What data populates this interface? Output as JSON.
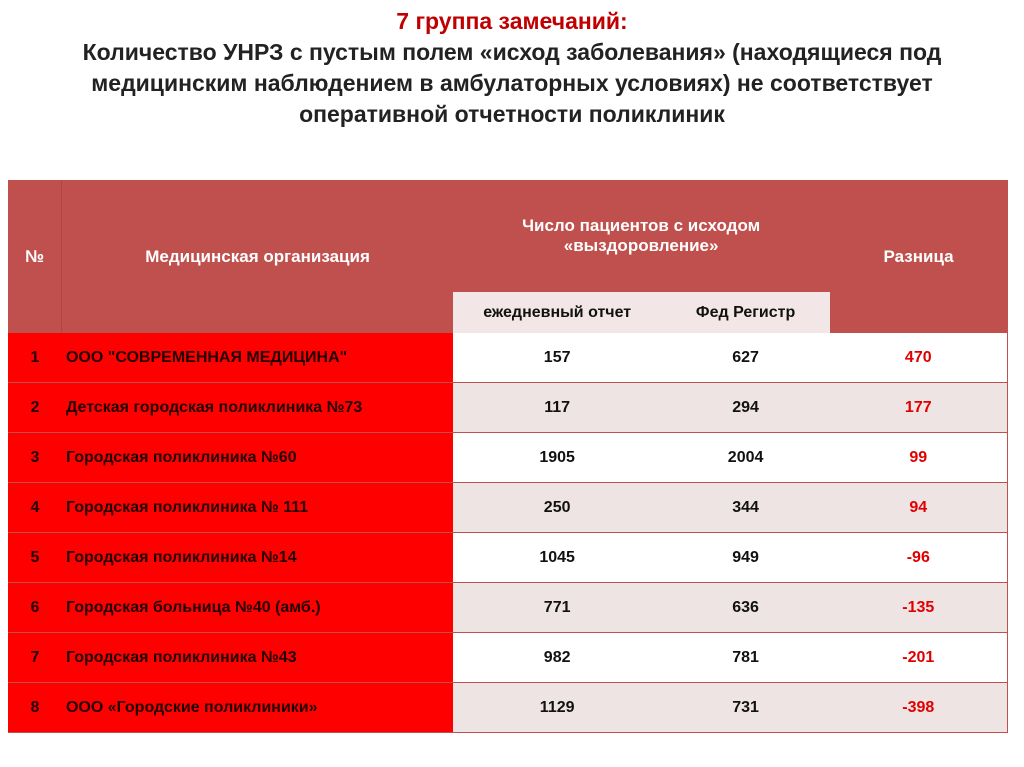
{
  "title": {
    "line1": "7 группа замечаний:",
    "line2": "Количество УНРЗ с пустым полем «исход заболевания» (находящиеся под медицинским наблюдением в амбулаторных условиях) не соответствует оперативной отчетности поликлиник"
  },
  "table": {
    "headers": {
      "num": "№",
      "org": "Медицинская организация",
      "group": "Число пациентов  с исходом «выздоровление»",
      "daily": "ежедневный отчет",
      "fed": "Фед Регистр",
      "diff": "Разница"
    },
    "rows": [
      {
        "num": "1",
        "org": "ООО \"СОВРЕМЕННАЯ МЕДИЦИНА\"",
        "daily": "157",
        "fed": "627",
        "diff": "470"
      },
      {
        "num": "2",
        "org": "Детская городская поликлиника №73",
        "daily": "117",
        "fed": "294",
        "diff": "177"
      },
      {
        "num": "3",
        "org": "Городская поликлиника №60",
        "daily": "1905",
        "fed": "2004",
        "diff": "99"
      },
      {
        "num": "4",
        "org": "Городская поликлиника № 111",
        "daily": "250",
        "fed": "344",
        "diff": "94"
      },
      {
        "num": "5",
        "org": "Городская поликлиника №14",
        "daily": "1045",
        "fed": "949",
        "diff": "-96"
      },
      {
        "num": "6",
        "org": "Городская больница №40 (амб.)",
        "daily": "771",
        "fed": "636",
        "diff": "-135"
      },
      {
        "num": "7",
        "org": "Городская поликлиника №43",
        "daily": "982",
        "fed": "781",
        "diff": "-201"
      },
      {
        "num": "8",
        "org": "ООО «Городские поликлиники»",
        "daily": "1129",
        "fed": "731",
        "diff": "-398"
      }
    ]
  },
  "colors": {
    "header": "#c0504d",
    "highlight": "#ff0000",
    "diff_text": "#e00000"
  }
}
